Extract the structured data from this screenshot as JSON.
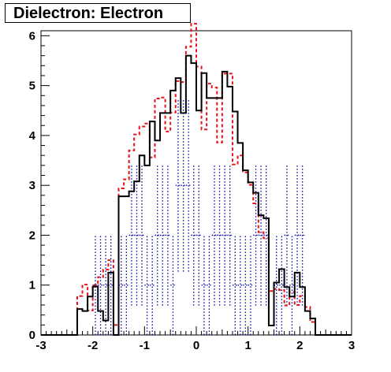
{
  "title": "Dielectron: Electron",
  "chart_data": {
    "type": "histogram",
    "title": "Dielectron: Electron",
    "xlabel": "",
    "ylabel": "",
    "xlim": [
      -3,
      3
    ],
    "ylim": [
      0,
      6.1
    ],
    "x_ticks": [
      -3,
      -2,
      -1,
      0,
      1,
      2,
      3
    ],
    "x_tick_labels": [
      "-3",
      "-2",
      "-1",
      "0",
      "1",
      "2",
      "3"
    ],
    "y_ticks": [
      0,
      1,
      2,
      3,
      4,
      5,
      6
    ],
    "y_tick_labels": [
      "0",
      "1",
      "2",
      "3",
      "4",
      "5",
      "6"
    ],
    "bins": {
      "start": -3.0,
      "width": 0.1,
      "count": 60
    },
    "grid": false,
    "legend": "none",
    "series": [
      {
        "style": "solid",
        "color": "#000000",
        "values": [
          0,
          0,
          0,
          0,
          0,
          0,
          0,
          0.52,
          0.48,
          0.77,
          0.97,
          0.48,
          0.29,
          1.25,
          0,
          2.78,
          2.78,
          2.88,
          3.08,
          3.6,
          3.4,
          4.28,
          3.9,
          4.45,
          4.45,
          4.9,
          5.15,
          4.45,
          5.6,
          5.45,
          4.5,
          5.25,
          4.75,
          4.75,
          4.75,
          5.28,
          4.98,
          4.48,
          3.85,
          3.3,
          3.06,
          2.85,
          2.4,
          2.34,
          0.19,
          1.05,
          1.32,
          0.96,
          0.77,
          1.25,
          0.96,
          0.48,
          0.33,
          0,
          0,
          0,
          0,
          0,
          0,
          0
        ]
      },
      {
        "style": "dashed",
        "color": "#e8121b",
        "values": [
          0,
          0,
          0,
          0,
          0,
          0,
          0,
          0.78,
          1.01,
          0.49,
          1.0,
          1.16,
          1.31,
          1.5,
          0.2,
          2.94,
          3.12,
          3.7,
          4.02,
          4.18,
          4.24,
          3.56,
          4.74,
          4.76,
          4.08,
          4.46,
          5.09,
          5.07,
          5.78,
          6.24,
          5.38,
          4.12,
          5.04,
          4.96,
          3.86,
          5.24,
          5.24,
          3.42,
          3.6,
          3.26,
          3.01,
          2.64,
          2.06,
          1.94,
          0.88,
          0.92,
          0.9,
          0.59,
          0.86,
          0.6,
          0.78,
          0.56,
          0.26,
          0,
          0,
          0,
          0,
          0,
          0,
          0
        ]
      },
      {
        "style": "error-bars",
        "color": "#0000aa",
        "values": [
          0,
          0,
          0,
          0,
          0,
          0,
          0,
          0,
          0,
          0,
          1,
          1,
          1,
          1,
          0,
          1,
          1,
          2,
          2,
          2,
          1,
          1,
          2,
          2,
          2,
          1,
          3,
          3,
          3,
          2,
          2,
          1,
          1,
          2,
          2,
          2,
          2,
          1,
          1,
          1,
          1,
          2,
          2,
          2,
          0,
          1,
          1,
          2,
          1,
          2,
          2,
          0,
          0,
          0,
          0,
          0,
          0,
          0,
          0,
          0
        ],
        "errors": [
          0,
          0,
          0,
          0,
          0,
          0,
          0,
          0,
          0,
          0,
          1,
          1,
          1,
          1,
          0,
          1,
          1,
          1.41,
          1.41,
          1.41,
          1,
          1,
          1.41,
          1.41,
          1.41,
          1,
          1.73,
          1.73,
          1.73,
          1.41,
          1.41,
          1,
          1,
          1.41,
          1.41,
          1.41,
          1.41,
          1,
          1,
          1,
          1,
          1.41,
          1.41,
          1.41,
          0,
          1,
          1,
          1.41,
          1,
          1.41,
          1.41,
          0,
          0,
          0,
          0,
          0,
          0,
          0,
          0,
          0
        ]
      }
    ]
  }
}
